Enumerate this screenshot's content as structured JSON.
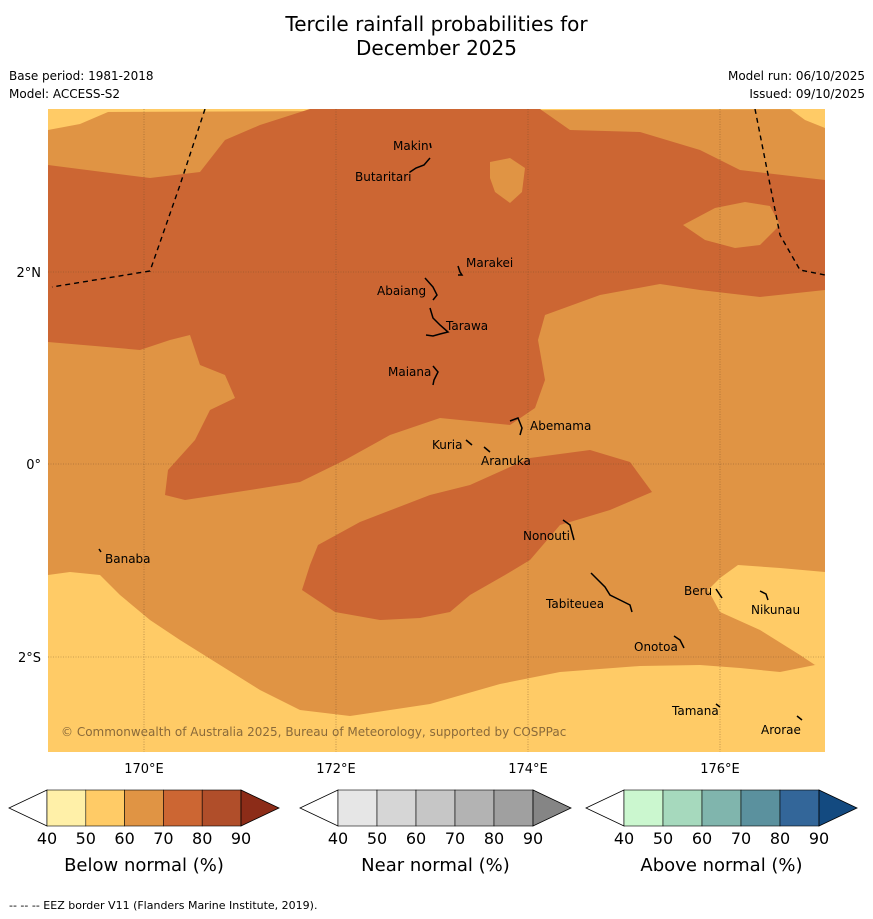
{
  "title_line1": "Tercile rainfall probabilities for",
  "title_line2": "December 2025",
  "base_period": "Base period: 1981-2018",
  "model": "Model: ACCESS-S2",
  "model_run": "Model run: 06/10/2025",
  "issued": "Issued: 09/10/2025",
  "copyright": "© Commonwealth of Australia 2025, Bureau of Meteorology, supported by COSPPac",
  "footer": "--  --  -- EEZ border V11 (Flanders Marine Institute, 2019).",
  "axes": {
    "lon_labels": [
      "170°E",
      "172°E",
      "174°E",
      "176°E"
    ],
    "lat_labels": [
      "2°N",
      "0°",
      "2°S"
    ]
  },
  "islands": {
    "makin": "Makin",
    "butaritari": "Butaritari",
    "marakei": "Marakei",
    "abaiang": "Abaiang",
    "tarawa": "Tarawa",
    "maiana": "Maiana",
    "abemama": "Abemama",
    "kuria": "Kuria",
    "aranuka": "Aranuka",
    "nonouti": "Nonouti",
    "banaba": "Banaba",
    "tabiteuea": "Tabiteuea",
    "beru": "Beru",
    "nikunau": "Nikunau",
    "onotoa": "Onotoa",
    "tamana": "Tamana",
    "arorae": "Arorae"
  },
  "colorbars": [
    {
      "title": "Below normal (%)",
      "ticks": [
        "40",
        "50",
        "60",
        "70",
        "80",
        "90"
      ],
      "colors": [
        "#fff0a8",
        "#ffcb66",
        "#e09444",
        "#cc6633",
        "#b04e2a",
        "#8c2c18"
      ]
    },
    {
      "title": "Near normal (%)",
      "ticks": [
        "40",
        "50",
        "60",
        "70",
        "80",
        "90"
      ],
      "colors": [
        "#e6e6e6",
        "#d6d6d6",
        "#c6c6c6",
        "#b3b3b3",
        "#a0a0a0",
        "#858585"
      ]
    },
    {
      "title": "Above normal (%)",
      "ticks": [
        "40",
        "50",
        "60",
        "70",
        "80",
        "90"
      ],
      "colors": [
        "#cbf7cf",
        "#a6d9bd",
        "#80b5ad",
        "#5b919e",
        "#336699",
        "#134a80"
      ]
    }
  ],
  "map_colors": {
    "band_40_50": "#ffcb66",
    "band_50_60": "#e09444",
    "band_60_70": "#cc6633"
  }
}
